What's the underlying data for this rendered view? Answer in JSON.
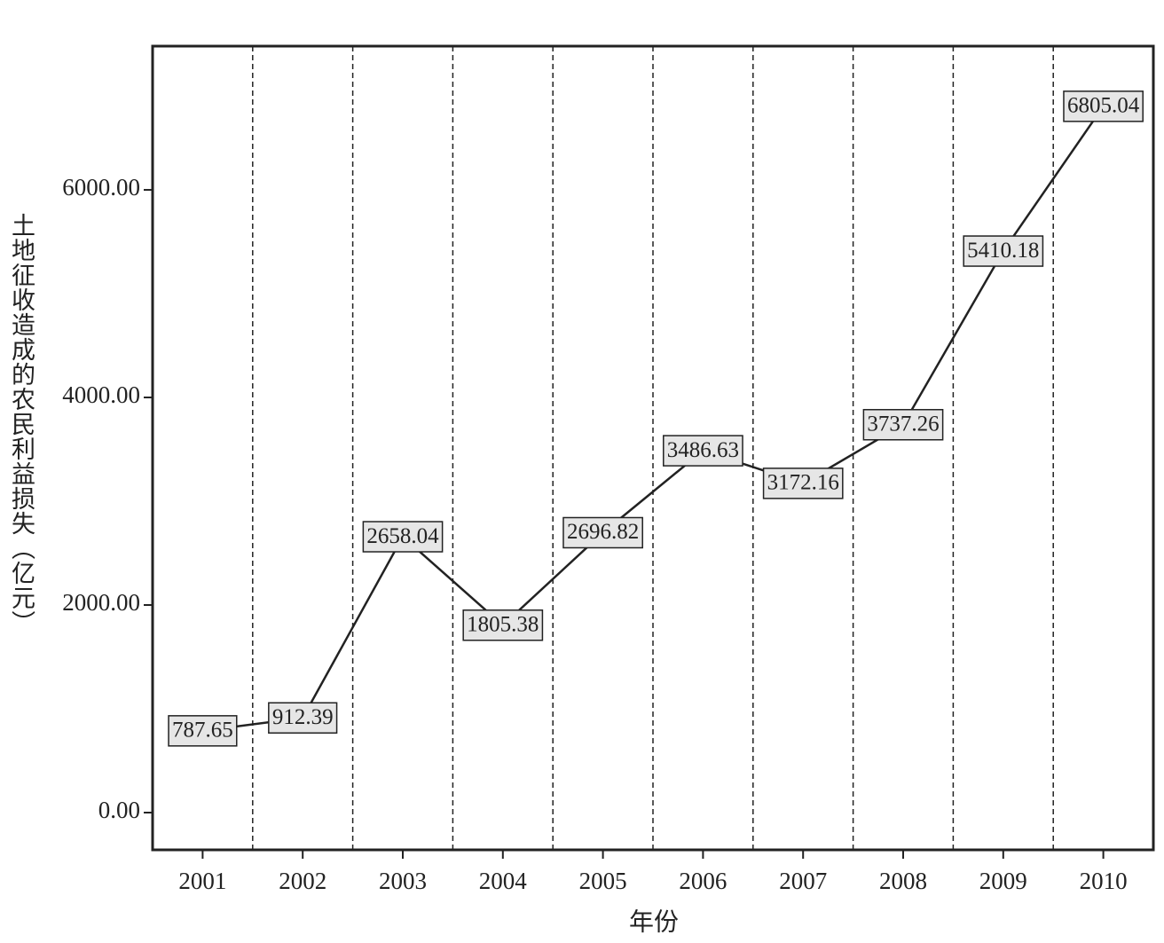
{
  "chart_data": {
    "type": "line",
    "x_label": "年份",
    "y_label": "土地征收造成的农民利益损失（亿元）",
    "categories": [
      "2001",
      "2002",
      "2003",
      "2004",
      "2005",
      "2006",
      "2007",
      "2008",
      "2009",
      "2010"
    ],
    "values": [
      787.65,
      912.39,
      2658.04,
      1805.38,
      2696.82,
      3486.63,
      3172.16,
      3737.26,
      5410.18,
      6805.04
    ],
    "color": "#222222",
    "label_fill": "#e6e6e6",
    "ylim": [
      -359,
      7385
    ],
    "yticks": [
      {
        "value": 0,
        "label": "0.00"
      },
      {
        "value": 2000,
        "label": "2000.00"
      },
      {
        "value": 4000,
        "label": "4000.00"
      },
      {
        "value": 6000,
        "label": "6000.00"
      }
    ]
  }
}
